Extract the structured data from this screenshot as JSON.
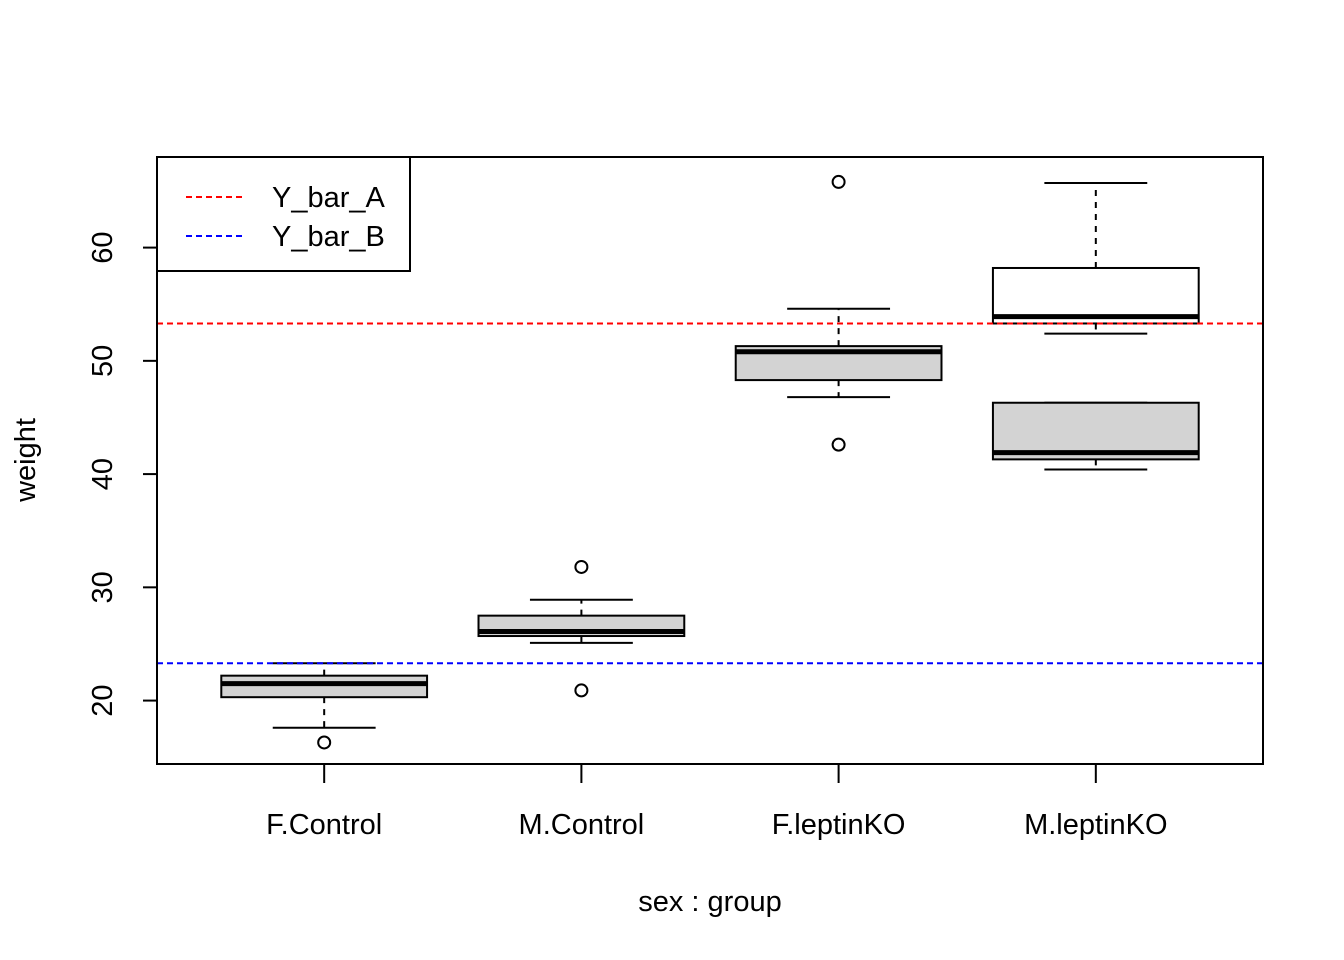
{
  "chart_data": {
    "type": "boxplot",
    "title": "",
    "xlabel": "sex : group",
    "ylabel": "weight",
    "ylim": [
      14.4,
      68.0
    ],
    "yticks": [
      20,
      30,
      40,
      50,
      60
    ],
    "categories": [
      "F.Control",
      "M.Control",
      "F.leptinKO",
      "M.leptinKO"
    ],
    "boxes": [
      {
        "category": "F.Control",
        "fill": "#d3d3d3",
        "whisker_low": 17.6,
        "q1": 20.3,
        "median": 21.5,
        "q3": 22.2,
        "whisker_high": 23.3,
        "outliers": [
          16.3
        ]
      },
      {
        "category": "M.Control",
        "fill": "#d3d3d3",
        "whisker_low": 25.1,
        "q1": 25.7,
        "median": 26.1,
        "q3": 27.5,
        "whisker_high": 28.9,
        "outliers": [
          31.8,
          20.9
        ]
      },
      {
        "category": "F.leptinKO",
        "fill": "#d3d3d3",
        "whisker_low": 46.8,
        "q1": 48.3,
        "median": 50.8,
        "q3": 51.3,
        "whisker_high": 54.6,
        "outliers": [
          65.8,
          42.6
        ]
      },
      {
        "category": "M.leptinKO",
        "fill": "#ffffff",
        "whisker_low": 52.4,
        "q1": 53.3,
        "median": 53.9,
        "q3": 58.2,
        "whisker_high": 65.7,
        "outliers": []
      },
      {
        "category": "M.leptinKO",
        "fill": "#d3d3d3",
        "whisker_low": 40.4,
        "q1": 41.3,
        "median": 41.9,
        "q3": 46.3,
        "whisker_high": 46.3,
        "outliers": []
      }
    ],
    "hlines": [
      {
        "name": "Y_bar_A",
        "y": 53.3,
        "color": "#ff0000"
      },
      {
        "name": "Y_bar_B",
        "y": 23.3,
        "color": "#0000ff"
      }
    ],
    "legend": {
      "position": "top-left",
      "entries": [
        {
          "label": "Y_bar_A",
          "color": "#ff0000",
          "style": "dashed"
        },
        {
          "label": "Y_bar_B",
          "color": "#0000ff",
          "style": "dashed"
        }
      ]
    },
    "grid": false
  }
}
